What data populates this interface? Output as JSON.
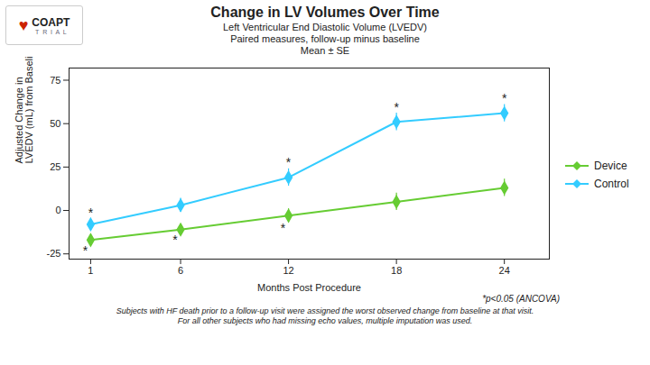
{
  "chart_data": {
    "type": "line",
    "title": "Change in LV Volumes Over Time",
    "subtitle": [
      "Left Ventricular End Diastolic Volume (LVEDV)",
      "Paired measures, follow-up minus baseline",
      "Mean ± SE"
    ],
    "xlabel": "Months Post Procedure",
    "ylabel": "Adjusted Change in\nLVEDV (mL) from Baseline",
    "x": [
      1,
      6,
      12,
      18,
      24
    ],
    "series": [
      {
        "name": "Device",
        "color": "#66cc33",
        "marker": "diamond",
        "values": [
          -17,
          -11,
          -3,
          5,
          13
        ],
        "errors": [
          3,
          3,
          4,
          5,
          5
        ]
      },
      {
        "name": "Control",
        "color": "#33ccff",
        "marker": "diamond",
        "values": [
          -8,
          3,
          19,
          51,
          56
        ],
        "errors": [
          3,
          4,
          5,
          5,
          5
        ]
      }
    ],
    "xlim": [
      -0.2,
      26.5
    ],
    "xticks": [
      1,
      6,
      12,
      18,
      24
    ],
    "ylim": [
      -28,
      82
    ],
    "yticks": [
      -25,
      0,
      25,
      50,
      75
    ],
    "grid": false,
    "legend": "right",
    "annotations": [
      {
        "text": "*",
        "series": "Control",
        "x": 1
      },
      {
        "text": "*",
        "series": "Control",
        "x": 12
      },
      {
        "text": "*",
        "series": "Control",
        "x": 18
      },
      {
        "text": "*",
        "series": "Control",
        "x": 24
      },
      {
        "text": "*",
        "series": "Device",
        "x": 1
      },
      {
        "text": "*",
        "series": "Device",
        "x": 6
      },
      {
        "text": "*",
        "series": "Device",
        "x": 12
      }
    ],
    "note": "*p<0.05 (ANCOVA)",
    "footnote": "Subjects with HF death prior to a follow-up visit were assigned the worst observed change from baseline at that visit.\nFor all other subjects who had missing echo values, multiple imputation was used.",
    "logo": [
      "♥",
      "COAPT",
      "T  R  I  A  L"
    ]
  }
}
